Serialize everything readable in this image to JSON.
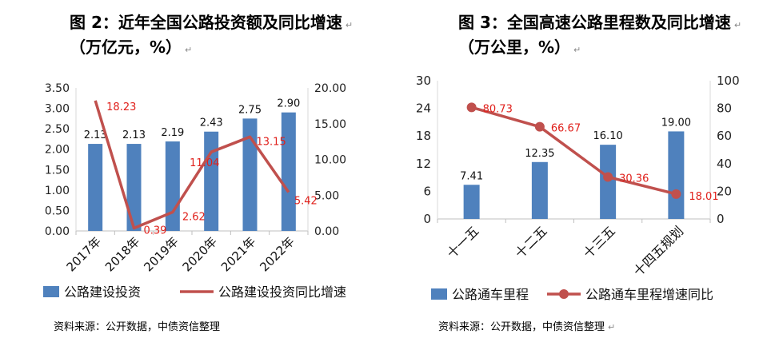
{
  "left": {
    "title_line1": "图 2：近年全国公路投资额及同比增速",
    "title_line2": "（万亿元，%）",
    "source": "资料来源：公开数据，中债资信整理",
    "legend_bar": "公路建设投资",
    "legend_line": "公路建设投资同比增速"
  },
  "right": {
    "title_line1": "图 3：全国高速公路里程数及同比增速",
    "title_line2": "（万公里，%）",
    "source": "资料来源：公开数据，中债资信整理",
    "legend_bar": "公路通车里程",
    "legend_line": "公路通车里程增速同比"
  },
  "colors": {
    "bar": "#4f81bd",
    "line": "#c0504d",
    "label_red": "#e0201b"
  },
  "chart_data": [
    {
      "type": "bar",
      "categories": [
        "2017年",
        "2018年",
        "2019年",
        "2020年",
        "2021年",
        "2022年"
      ],
      "series": [
        {
          "name": "公路建设投资",
          "type": "bar",
          "axis": "left",
          "values": [
            2.13,
            2.13,
            2.19,
            2.43,
            2.75,
            2.9
          ],
          "labels": [
            "2.13",
            "2.13",
            "2.19",
            "2.43",
            "2.75",
            "2.90"
          ]
        },
        {
          "name": "公路建设投资同比增速",
          "type": "line",
          "axis": "right",
          "values": [
            18.23,
            0.39,
            2.62,
            11.04,
            13.15,
            5.42
          ],
          "labels": [
            "18.23",
            "0.39",
            "2.62",
            "11.04",
            "13.15",
            "5.42"
          ]
        }
      ],
      "y_left": {
        "range": [
          0,
          3.5
        ],
        "ticks": [
          "0.00",
          "0.50",
          "1.00",
          "1.50",
          "2.00",
          "2.50",
          "3.00",
          "3.50"
        ]
      },
      "y_right": {
        "range": [
          0,
          20
        ],
        "ticks": [
          "0.00",
          "5.00",
          "10.00",
          "15.00",
          "20.00"
        ]
      },
      "grid": false,
      "legend": "bottom"
    },
    {
      "type": "bar",
      "categories": [
        "十一五",
        "十二五",
        "十三五",
        "十四五规划"
      ],
      "series": [
        {
          "name": "公路通车里程",
          "type": "bar",
          "axis": "left",
          "values": [
            7.41,
            12.35,
            16.1,
            19.0
          ],
          "labels": [
            "7.41",
            "12.35",
            "16.10",
            "19.00"
          ]
        },
        {
          "name": "公路通车里程增速同比",
          "type": "line",
          "axis": "right",
          "values": [
            80.73,
            66.67,
            30.36,
            18.01
          ],
          "labels": [
            "80.73",
            "66.67",
            "30.36",
            "18.01"
          ]
        }
      ],
      "y_left": {
        "range": [
          0,
          30
        ],
        "ticks": [
          "0",
          "6",
          "12",
          "18",
          "24",
          "30"
        ]
      },
      "y_right": {
        "range": [
          0,
          100
        ],
        "ticks": [
          "0",
          "20",
          "40",
          "60",
          "80",
          "100"
        ]
      },
      "grid": false,
      "legend": "bottom"
    }
  ]
}
